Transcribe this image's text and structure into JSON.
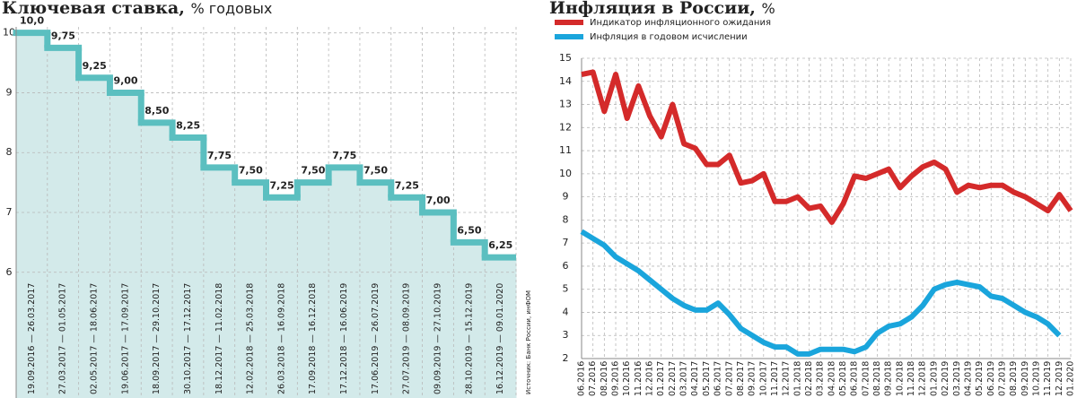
{
  "chart_data": [
    {
      "type": "step",
      "title": "Ключевая ставка,",
      "unit": "% годовых",
      "categories": [
        "19.09.2016 — 26.03.2017",
        "27.03.2017 — 01.05.2017",
        "02.05.2017 — 18.06.2017",
        "19.06.2017 — 17.09.2017",
        "18.09.2017 — 29.10.2017",
        "30.10.2017 — 17.12.2017",
        "18.12.2017 — 11.02.2018",
        "12.02.2018 — 25.03.2018",
        "26.03.2018 — 16.09.2018",
        "17.09.2018 — 16.12.2018",
        "17.12.2018 — 16.06.2019",
        "17.06.2019 — 26.07.2019",
        "27.07.2019 — 08.09.2019",
        "09.09.2019 — 27.10.2019",
        "28.10.2019 — 15.12.2019",
        "16.12.2019 — 09.01.2020"
      ],
      "values": [
        10.0,
        9.75,
        9.25,
        9.0,
        8.5,
        8.25,
        7.75,
        7.5,
        7.25,
        7.5,
        7.75,
        7.5,
        7.25,
        7.0,
        6.5,
        6.25
      ],
      "value_labels": [
        "10,0",
        "9,75",
        "9,25",
        "9,00",
        "8,50",
        "8,25",
        "7,75",
        "7,50",
        "7,25",
        "7,50",
        "7,75",
        "7,50",
        "7,25",
        "7,00",
        "6,50",
        "6,25"
      ],
      "color": "#5bbfc0",
      "fill_color": "#d3eaea",
      "ylim": [
        3.9,
        10.1
      ],
      "yticks": [
        6,
        7,
        8,
        9,
        10
      ],
      "grid": true,
      "source": "Источник: Банк России, инФОМ"
    },
    {
      "type": "line",
      "title": "Инфляция в России,",
      "unit": "%",
      "categories": [
        "06.2016",
        "07.2016",
        "08.2016",
        "09.2016",
        "10.2016",
        "11.2016",
        "12.2016",
        "01.2017",
        "02.2017",
        "03.2017",
        "04.2017",
        "05.2017",
        "06.2017",
        "07.2017",
        "08.2017",
        "09.2017",
        "10.2017",
        "11.2017",
        "12.2017",
        "01.2018",
        "02.2018",
        "03.2018",
        "04.2018",
        "05.2018",
        "06.2018",
        "07.2018",
        "08.2018",
        "09.2018",
        "10.2018",
        "11.2018",
        "12.2018",
        "01.2019",
        "02.2019",
        "03.2019",
        "04.2019",
        "05.2019",
        "06.2019",
        "07.2019",
        "08.2019",
        "09.2019",
        "10.2019",
        "11.2019",
        "12.2019",
        "01.2020"
      ],
      "series": [
        {
          "name": "Индикатор инфляционного ожидания",
          "color": "#d42a2a",
          "values": [
            14.3,
            14.4,
            12.7,
            14.3,
            12.4,
            13.8,
            12.5,
            11.6,
            13.0,
            11.3,
            11.1,
            10.4,
            10.4,
            10.8,
            9.6,
            9.7,
            10.0,
            8.8,
            8.8,
            9.0,
            8.5,
            8.6,
            7.9,
            8.7,
            9.9,
            9.8,
            10.0,
            10.2,
            9.4,
            9.9,
            10.3,
            10.5,
            10.2,
            9.2,
            9.5,
            9.4,
            9.5,
            9.5,
            9.2,
            9.0,
            8.7,
            8.4,
            9.1,
            8.4
          ]
        },
        {
          "name": "Инфляция в годовом исчислении",
          "color": "#1aa5dc",
          "values": [
            7.5,
            7.2,
            6.9,
            6.4,
            6.1,
            5.8,
            5.4,
            5.0,
            4.6,
            4.3,
            4.1,
            4.1,
            4.4,
            3.9,
            3.3,
            3.0,
            2.7,
            2.5,
            2.5,
            2.2,
            2.2,
            2.4,
            2.4,
            2.4,
            2.3,
            2.5,
            3.1,
            3.4,
            3.5,
            3.8,
            4.3,
            5.0,
            5.2,
            5.3,
            5.2,
            5.1,
            4.7,
            4.6,
            4.3,
            4.0,
            3.8,
            3.5,
            3.0,
            null
          ]
        }
      ],
      "ylim": [
        2,
        15
      ],
      "yticks": [
        2,
        3,
        4,
        5,
        6,
        7,
        8,
        9,
        10,
        11,
        12,
        13,
        14,
        15
      ],
      "grid": true
    }
  ]
}
